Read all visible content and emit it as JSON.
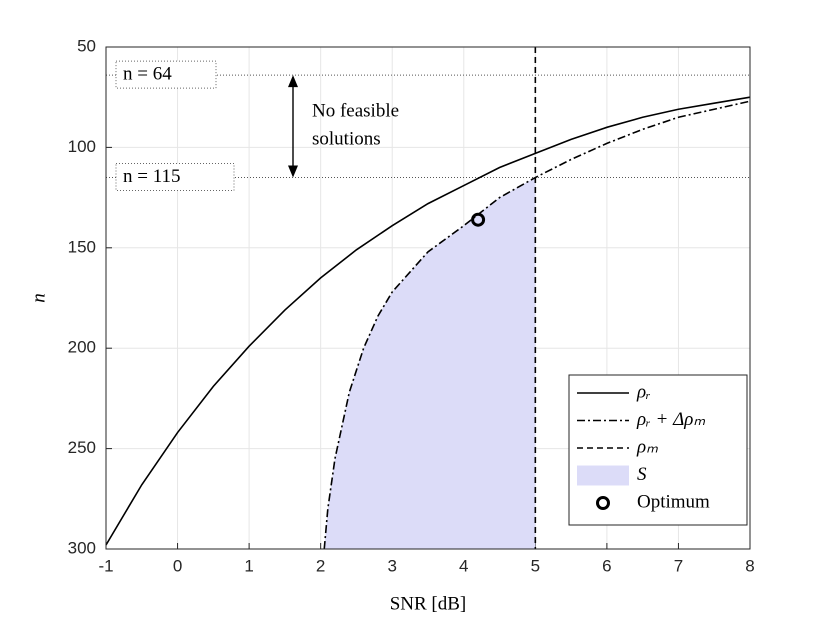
{
  "chart_data": {
    "type": "line",
    "xlabel": "SNR [dB]",
    "ylabel": "n",
    "xlim": [
      -1,
      8
    ],
    "xticks": [
      -1,
      0,
      1,
      2,
      3,
      4,
      5,
      6,
      7,
      8
    ],
    "ylim": [
      50,
      300
    ],
    "yticks": [
      50,
      100,
      150,
      200,
      250,
      300
    ],
    "y_reversed": true,
    "grid": true,
    "legend": "lower right",
    "series": [
      {
        "name": "ρᵣ",
        "color": "#000000",
        "dash": "solid",
        "x": [
          -1,
          -0.5,
          0,
          0.5,
          1,
          1.5,
          2,
          2.5,
          3,
          3.5,
          4,
          4.5,
          5,
          5.5,
          6,
          6.5,
          7,
          7.5,
          8
        ],
        "values": [
          298,
          268,
          242,
          219,
          199,
          181,
          165,
          151,
          139,
          128,
          119,
          110,
          103,
          96,
          90,
          85,
          81,
          78,
          75
        ]
      },
      {
        "name": "ρᵣ + Δρₘ",
        "color": "#000000",
        "dash": "dashdot",
        "x": [
          2.05,
          2.1,
          2.2,
          2.4,
          2.6,
          2.8,
          3,
          3.5,
          4,
          4.5,
          5,
          5.5,
          6,
          6.5,
          7,
          7.5,
          8
        ],
        "values": [
          300,
          280,
          255,
          222,
          200,
          184,
          172,
          152,
          139,
          125,
          115,
          106,
          98,
          91,
          85,
          81,
          77
        ]
      },
      {
        "name": "ρₘ",
        "color": "#000000",
        "dash": "dashed",
        "x": [
          5,
          5
        ],
        "values": [
          50,
          300
        ]
      },
      {
        "name": "S",
        "color": "#dcdcf8",
        "dash": "area"
      },
      {
        "name": "Optimum",
        "color": "#000000",
        "dash": "marker",
        "x": [
          4.2
        ],
        "values": [
          136
        ]
      }
    ],
    "hlines": [
      {
        "value": 64,
        "label": "n = 64"
      },
      {
        "value": 115,
        "label": "n = 115"
      }
    ],
    "annotation": [
      "No feasible",
      "solutions"
    ]
  }
}
